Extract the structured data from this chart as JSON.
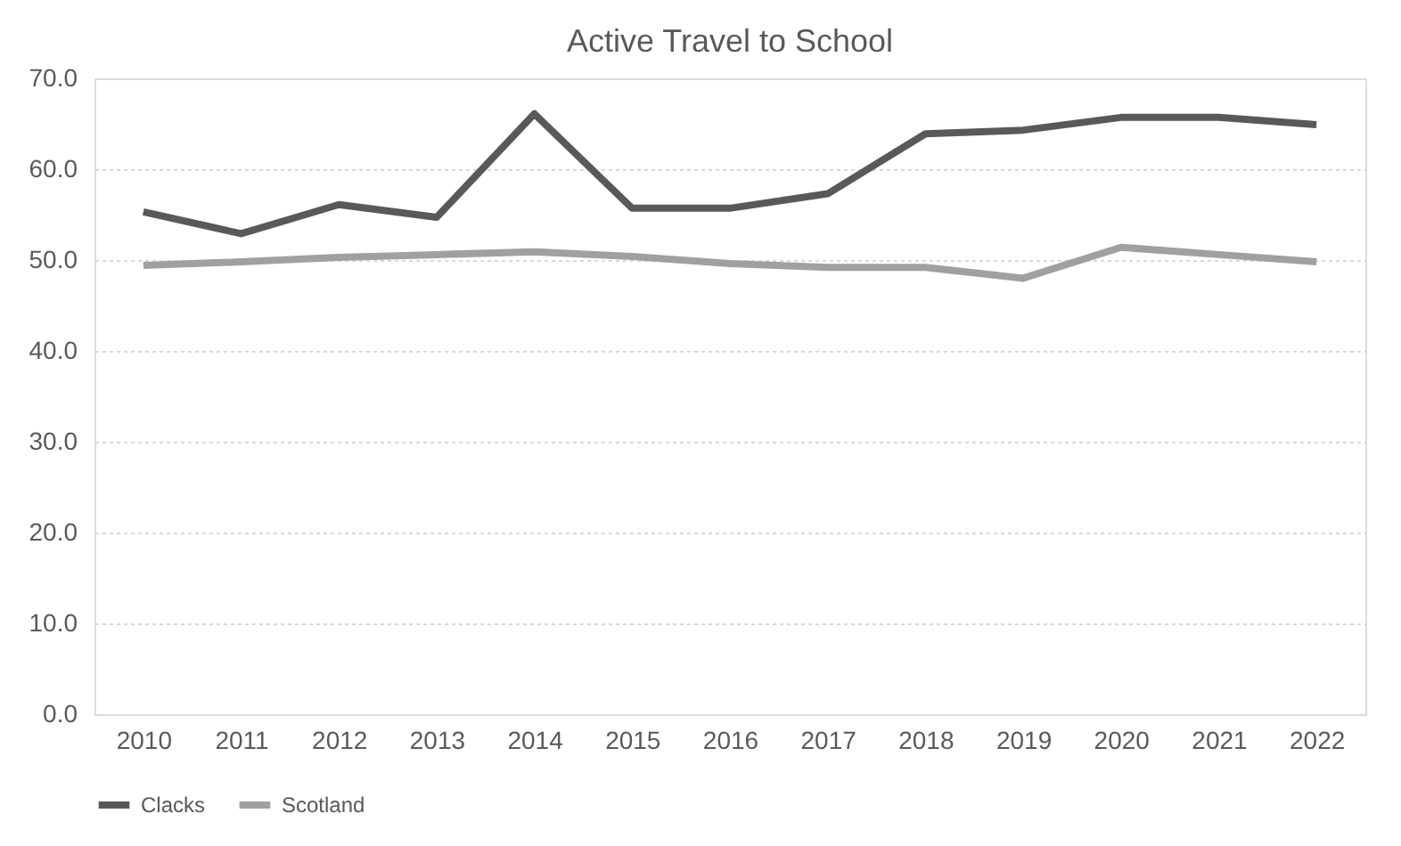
{
  "chart_data": {
    "type": "line",
    "title": "Active Travel to School",
    "categories": [
      "2010",
      "2011",
      "2012",
      "2013",
      "2014",
      "2015",
      "2016",
      "2017",
      "2018",
      "2019",
      "2020",
      "2021",
      "2022"
    ],
    "series": [
      {
        "name": "Clacks",
        "color": "#595959",
        "values": [
          55.3,
          52.9,
          56.1,
          54.7,
          66.1,
          55.7,
          55.7,
          57.3,
          63.9,
          64.3,
          65.7,
          65.7,
          64.9
        ]
      },
      {
        "name": "Scotland",
        "color": "#a0a0a0",
        "values": [
          49.4,
          49.8,
          50.3,
          50.6,
          50.9,
          50.4,
          49.6,
          49.2,
          49.2,
          48.0,
          51.4,
          50.6,
          49.8
        ]
      }
    ],
    "ylim": [
      0,
      70
    ],
    "yticks": [
      {
        "value": 0,
        "label": "0.0"
      },
      {
        "value": 10,
        "label": "10.0"
      },
      {
        "value": 20,
        "label": "20.0"
      },
      {
        "value": 30,
        "label": "30.0"
      },
      {
        "value": 40,
        "label": "40.0"
      },
      {
        "value": 50,
        "label": "50.0"
      },
      {
        "value": 60,
        "label": "60.0"
      },
      {
        "value": 70,
        "label": "70.0"
      }
    ],
    "grid": "y",
    "legend": "bottom",
    "marker": "none",
    "line_style": "solid"
  }
}
